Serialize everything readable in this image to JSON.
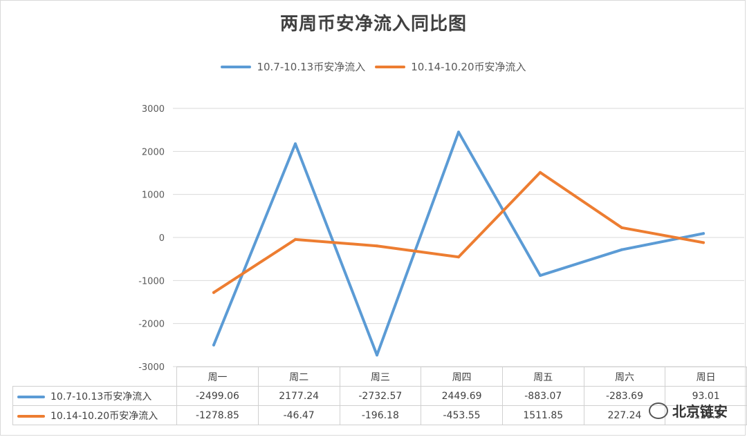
{
  "colors": {
    "series1": "#5b9bd5",
    "series2": "#ed7d31",
    "grid": "#d9d9d9"
  },
  "watermark": {
    "text": "北京链安",
    "icon": "wechat-icon"
  },
  "chart_data": {
    "type": "line",
    "title": "两周币安净流入同比图",
    "categories": [
      "周一",
      "周二",
      "周三",
      "周四",
      "周五",
      "周六",
      "周日"
    ],
    "series": [
      {
        "name": "10.7-10.13币安净流入",
        "values": [
          -2499.06,
          2177.24,
          -2732.57,
          2449.69,
          -883.07,
          -283.69,
          93.01
        ],
        "labels": [
          "-2499.06",
          "2177.24",
          "-2732.57",
          "2449.69",
          "-883.07",
          "-283.69",
          "93.01"
        ]
      },
      {
        "name": "10.14-10.20币安净流入",
        "values": [
          -1278.85,
          -46.47,
          -196.18,
          -453.55,
          1511.85,
          227.24,
          -119.3
        ],
        "labels": [
          "-1278.85",
          "-46.47",
          "-196.18",
          "-453.55",
          "1511.85",
          "227.24",
          "-119.3"
        ]
      }
    ],
    "yticks": [
      "3000",
      "2000",
      "1000",
      "0",
      "-1000",
      "-2000",
      "-3000"
    ],
    "ylim": [
      -3000,
      3000
    ],
    "grid": true,
    "legend": "top-center",
    "data_table": true
  }
}
